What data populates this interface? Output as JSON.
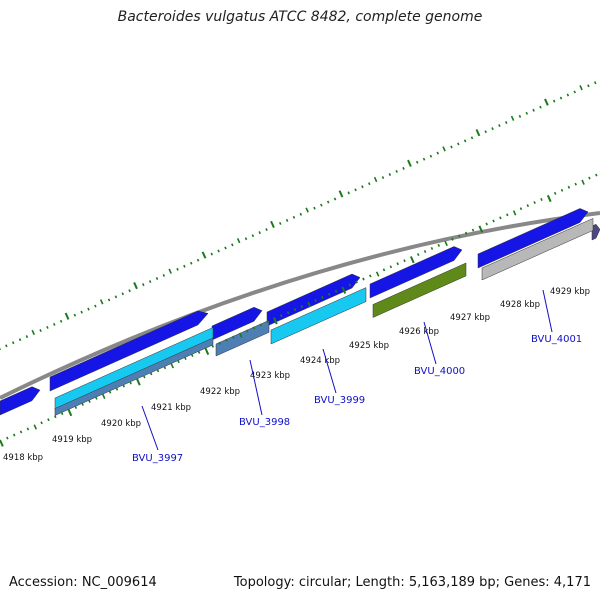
{
  "title": "Bacteroides vulgatus ATCC 8482, complete genome",
  "footer": {
    "accession": "Accession: NC_009614",
    "summary": "Topology: circular; Length: 5,163,189 bp; Genes: 4,171"
  },
  "colors": {
    "backbone": "#888888",
    "tick": "#1a7a1a",
    "cds_forward": "#1515e6",
    "cds_cyan": "#17c8f0",
    "cds_steel": "#4d7fb5",
    "cds_olive": "#5f8a1a",
    "cds_gray": "#b8b8b8",
    "cds_slate": "#4a4a80",
    "label": "#1010c8"
  },
  "ticks": [
    {
      "kb": 4918,
      "label": "4918 kbp"
    },
    {
      "kb": 4919,
      "label": "4919 kbp"
    },
    {
      "kb": 4920,
      "label": "4920 kbp"
    },
    {
      "kb": 4921,
      "label": "4921 kbp"
    },
    {
      "kb": 4922,
      "label": "4922 kbp"
    },
    {
      "kb": 4923,
      "label": "4923 kbp"
    },
    {
      "kb": 4924,
      "label": "4924 kbp"
    },
    {
      "kb": 4925,
      "label": "4925 kbp"
    },
    {
      "kb": 4926,
      "label": "4926 kbp"
    },
    {
      "kb": 4927,
      "label": "4927 kbp"
    },
    {
      "kb": 4928,
      "label": "4928 kbp"
    },
    {
      "kb": 4929,
      "label": "4929 kbp"
    }
  ],
  "genes": [
    {
      "locus": "BVU_3997"
    },
    {
      "locus": "BVU_3998"
    },
    {
      "locus": "BVU_3999"
    },
    {
      "locus": "BVU_4000"
    },
    {
      "locus": "BVU_4001"
    }
  ]
}
